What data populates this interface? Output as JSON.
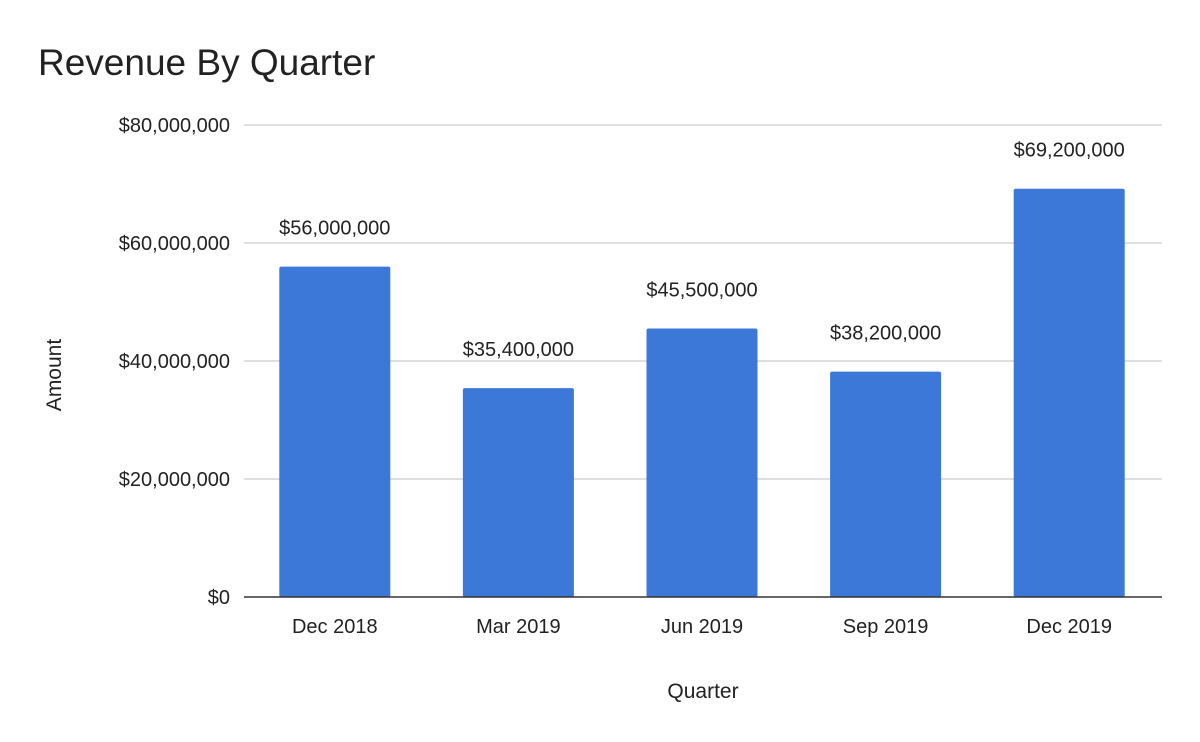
{
  "chart_data": {
    "type": "bar",
    "title": "Revenue By Quarter",
    "xlabel": "Quarter",
    "ylabel": "Amount",
    "categories": [
      "Dec 2018",
      "Mar 2019",
      "Jun 2019",
      "Sep 2019",
      "Dec 2019"
    ],
    "values": [
      56000000,
      35400000,
      45500000,
      38200000,
      69200000
    ],
    "data_labels": [
      "$56,000,000",
      "$35,400,000",
      "$45,500,000",
      "$38,200,000",
      "$69,200,000"
    ],
    "ylim": [
      0,
      80000000
    ],
    "yticks": [
      0,
      20000000,
      40000000,
      60000000,
      80000000
    ],
    "ytick_labels": [
      "$0",
      "$20,000,000",
      "$40,000,000",
      "$60,000,000",
      "$80,000,000"
    ],
    "grid": true,
    "legend": "none",
    "colors": {
      "bar": "#3c78d8",
      "grid": "#cccccc",
      "axis": "#333333"
    }
  }
}
